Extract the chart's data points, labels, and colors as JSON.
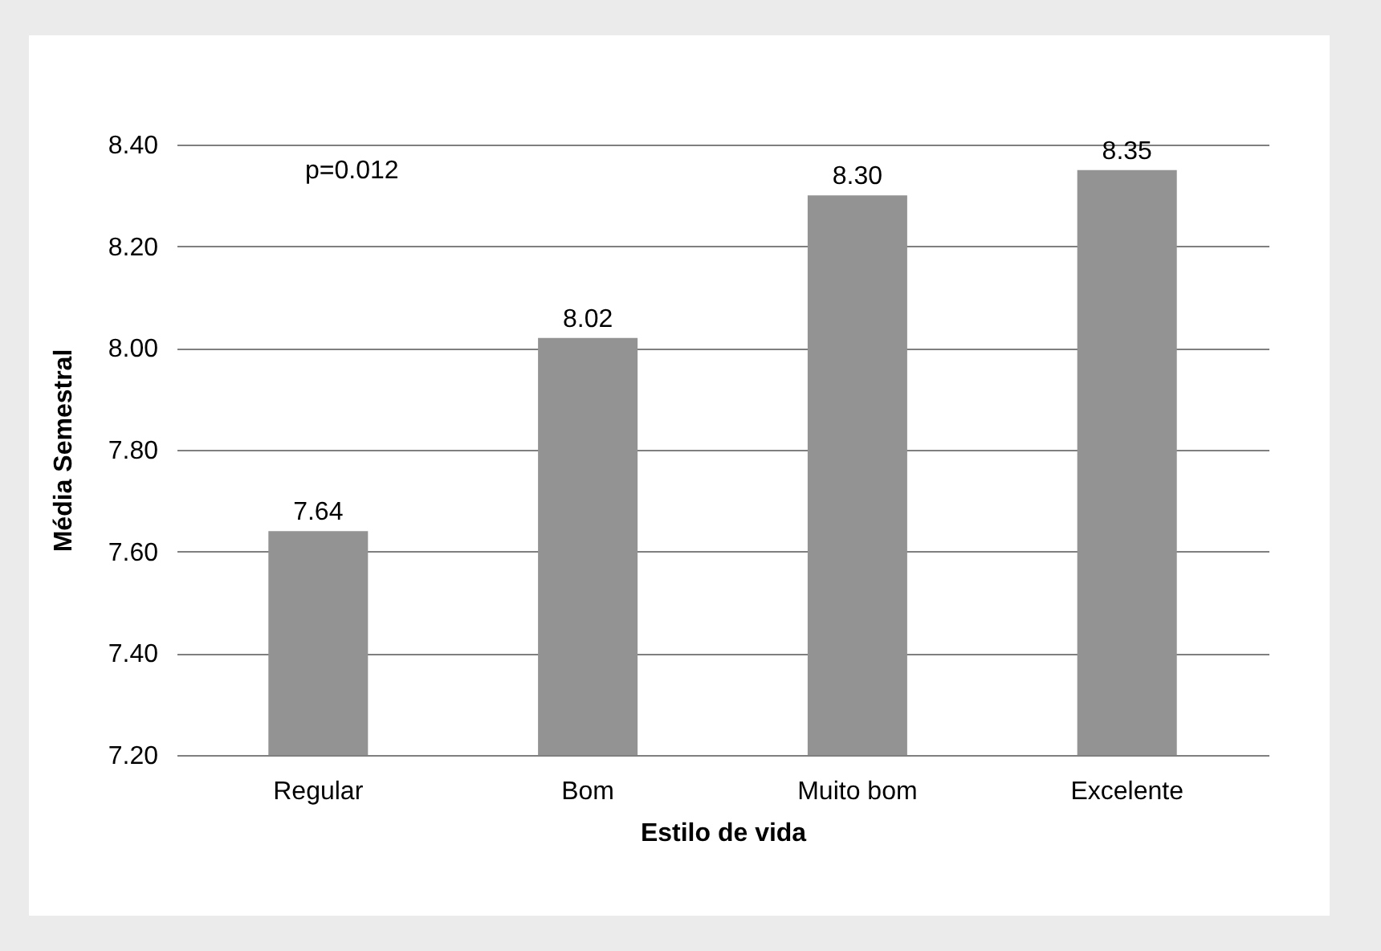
{
  "chart_data": {
    "type": "bar",
    "xlabel": "Estilo de vida",
    "ylabel": "Média Semestral",
    "categories": [
      "Regular",
      "Bom",
      "Muito bom",
      "Excelente"
    ],
    "series": [
      {
        "color": "#939393",
        "values": [
          7.64,
          8.02,
          8.3,
          8.35
        ],
        "value_labels": [
          "7.64",
          "8.02",
          "8.30",
          "8.35"
        ]
      }
    ],
    "ylim": [
      7.2,
      8.4
    ],
    "yticks": [
      {
        "value": 7.2,
        "label": "7.20"
      },
      {
        "value": 7.4,
        "label": "7.40"
      },
      {
        "value": 7.6,
        "label": "7.60"
      },
      {
        "value": 7.8,
        "label": "7.80"
      },
      {
        "value": 8.0,
        "label": "8.00"
      },
      {
        "value": 8.2,
        "label": "8.20"
      },
      {
        "value": 8.4,
        "label": "8.40"
      }
    ],
    "grid": "y",
    "annotations": [
      "p=0.012"
    ]
  }
}
